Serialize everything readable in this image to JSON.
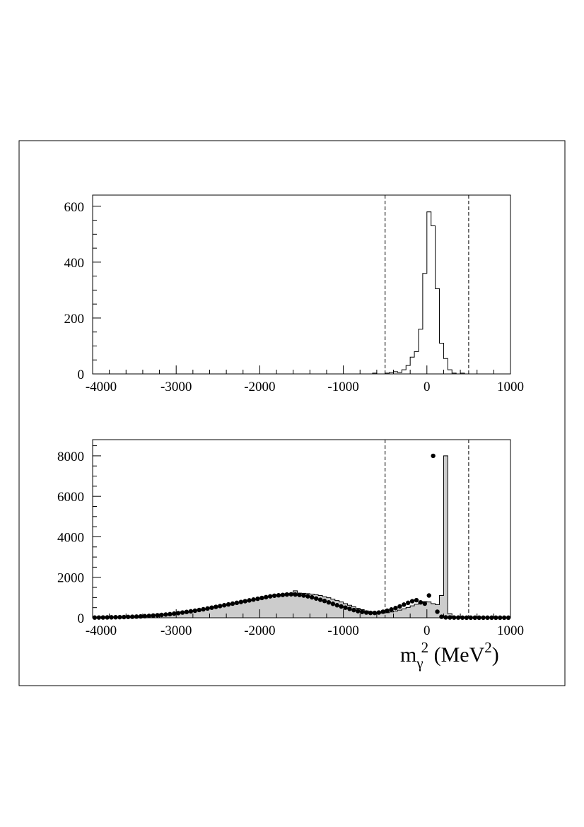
{
  "chart_data": [
    {
      "type": "histogram",
      "title": "",
      "xlabel": "",
      "ylabel": "",
      "xlim": [
        -4000,
        1000
      ],
      "ylim": [
        0,
        640
      ],
      "x_ticks": [
        -4000,
        -3000,
        -2000,
        -1000,
        0,
        1000
      ],
      "x_tick_labels": [
        "-4000",
        "-3000",
        "-2000",
        "-1000",
        "0",
        "1000"
      ],
      "y_ticks": [
        0,
        200,
        400,
        600
      ],
      "y_tick_labels": [
        "0",
        "200",
        "400",
        "600"
      ],
      "cut_lines": [
        -500,
        500
      ],
      "bins": {
        "edges": [
          -700,
          -650,
          -600,
          -550,
          -500,
          -450,
          -400,
          -350,
          -300,
          -250,
          -200,
          -150,
          -100,
          -50,
          0,
          50,
          100,
          150,
          200,
          250,
          300,
          350,
          400,
          450
        ],
        "counts": [
          0,
          3,
          0,
          0,
          3,
          5,
          8,
          5,
          15,
          30,
          60,
          80,
          160,
          360,
          580,
          530,
          305,
          110,
          55,
          15,
          3,
          0,
          3
        ]
      },
      "colors": {
        "line": "#000000",
        "cut_line": "#000000"
      }
    },
    {
      "type": "histogram",
      "title": "",
      "xlabel": "m",
      "xlabel_subscript": "γ",
      "xlabel_superscript": "2",
      "xlabel_unit": " (MeV",
      "xlabel_unit_superscript": "2",
      "xlabel_close": ")",
      "ylabel": "",
      "xlim": [
        -4000,
        1000
      ],
      "ylim": [
        0,
        8800
      ],
      "x_ticks": [
        -4000,
        -3000,
        -2000,
        -1000,
        0,
        1000
      ],
      "x_tick_labels": [
        "-4000",
        "-3000",
        "-2000",
        "-1000",
        "0",
        "1000"
      ],
      "y_ticks": [
        0,
        2000,
        4000,
        6000,
        8000
      ],
      "y_tick_labels": [
        "0",
        "2000",
        "4000",
        "6000",
        "8000"
      ],
      "cut_lines": [
        -500,
        500
      ],
      "bin_width": 50,
      "mc_hist": {
        "x_start": -4000,
        "counts": [
          10,
          10,
          15,
          15,
          20,
          25,
          30,
          35,
          40,
          45,
          55,
          65,
          75,
          90,
          105,
          120,
          135,
          155,
          175,
          200,
          225,
          250,
          280,
          310,
          340,
          375,
          410,
          450,
          490,
          530,
          570,
          610,
          650,
          690,
          730,
          770,
          810,
          850,
          890,
          930,
          970,
          1010,
          1050,
          1100,
          1140,
          1170,
          1190,
          1200,
          1330,
          1220,
          1210,
          1190,
          1170,
          1140,
          1100,
          1040,
          990,
          920,
          850,
          780,
          700,
          620,
          540,
          470,
          400,
          340,
          290,
          250,
          230,
          230,
          250,
          290,
          330,
          380,
          440,
          510,
          590,
          670,
          750,
          800,
          780,
          700,
          650,
          1100,
          8000,
          200,
          50,
          30,
          20,
          15,
          10,
          10,
          10,
          5,
          5,
          5,
          5,
          5,
          5,
          5
        ],
        "fill": "#cccccc",
        "line": "#000000"
      },
      "data_points": {
        "x": [
          -3975,
          -3925,
          -3875,
          -3825,
          -3775,
          -3725,
          -3675,
          -3625,
          -3575,
          -3525,
          -3475,
          -3425,
          -3375,
          -3325,
          -3275,
          -3225,
          -3175,
          -3125,
          -3075,
          -3025,
          -2975,
          -2925,
          -2875,
          -2825,
          -2775,
          -2725,
          -2675,
          -2625,
          -2575,
          -2525,
          -2475,
          -2425,
          -2375,
          -2325,
          -2275,
          -2225,
          -2175,
          -2125,
          -2075,
          -2025,
          -1975,
          -1925,
          -1875,
          -1825,
          -1775,
          -1725,
          -1675,
          -1625,
          -1575,
          -1525,
          -1475,
          -1425,
          -1375,
          -1325,
          -1275,
          -1225,
          -1175,
          -1125,
          -1075,
          -1025,
          -975,
          -925,
          -875,
          -825,
          -775,
          -725,
          -675,
          -625,
          -575,
          -525,
          -475,
          -425,
          -375,
          -325,
          -275,
          -225,
          -175,
          -125,
          -75,
          -25,
          25,
          75,
          125,
          175,
          225,
          275,
          325,
          375,
          425,
          475,
          525,
          575,
          625,
          675,
          725,
          775,
          825,
          875,
          925,
          975
        ],
        "y": [
          10,
          12,
          15,
          18,
          22,
          26,
          30,
          35,
          42,
          50,
          58,
          68,
          80,
          95,
          110,
          125,
          140,
          160,
          180,
          205,
          230,
          260,
          290,
          320,
          350,
          385,
          420,
          460,
          500,
          540,
          580,
          620,
          660,
          700,
          740,
          780,
          820,
          860,
          900,
          940,
          980,
          1020,
          1060,
          1090,
          1110,
          1130,
          1150,
          1160,
          1150,
          1130,
          1100,
          1060,
          1010,
          950,
          890,
          830,
          760,
          690,
          620,
          560,
          500,
          440,
          380,
          330,
          290,
          260,
          240,
          240,
          260,
          300,
          350,
          410,
          480,
          560,
          650,
          740,
          820,
          870,
          760,
          700,
          1100,
          8000,
          300,
          50,
          20,
          15,
          10,
          10,
          8,
          6,
          5,
          5,
          5,
          5,
          5,
          5,
          5,
          5,
          5,
          5
        ],
        "marker": "circle",
        "color": "#000000"
      }
    }
  ]
}
